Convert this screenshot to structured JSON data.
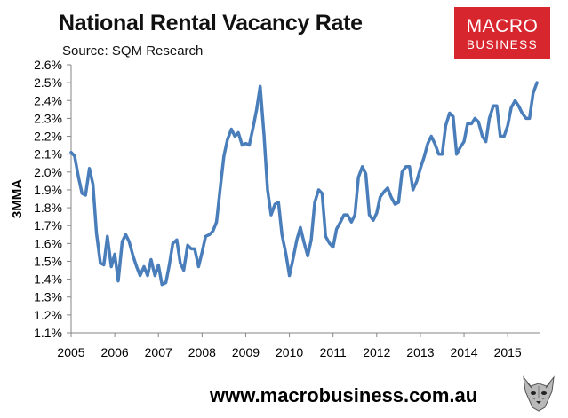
{
  "header": {
    "title": "National Rental Vacancy Rate",
    "subtitle": "Source: SQM Research"
  },
  "logo": {
    "line1": "MACRO",
    "line2": "BUSINESS",
    "color": "#d8262f"
  },
  "footer": {
    "url": "www.macrobusiness.com.au"
  },
  "chart_data": {
    "type": "line",
    "title": "National Rental Vacancy Rate",
    "ylabel": "3MMA",
    "xlabel": "",
    "ylim": [
      1.1,
      2.6
    ],
    "xlim": [
      2005.0,
      2015.75
    ],
    "yticks": [
      "1.1%",
      "1.2%",
      "1.3%",
      "1.4%",
      "1.5%",
      "1.6%",
      "1.7%",
      "1.8%",
      "1.9%",
      "2.0%",
      "2.1%",
      "2.2%",
      "2.3%",
      "2.4%",
      "2.5%",
      "2.6%"
    ],
    "xticks": [
      "2005",
      "2006",
      "2007",
      "2008",
      "2009",
      "2010",
      "2011",
      "2012",
      "2013",
      "2014",
      "2015"
    ],
    "grid": false,
    "line_color": "#4a7ebb",
    "series": [
      {
        "x": [
          2005.0,
          2005.08,
          2005.17,
          2005.25,
          2005.33,
          2005.42,
          2005.5,
          2005.58,
          2005.67,
          2005.75,
          2005.83,
          2005.92,
          2006.0,
          2006.08,
          2006.17,
          2006.25,
          2006.33,
          2006.42,
          2006.5,
          2006.58,
          2006.67,
          2006.75,
          2006.83,
          2006.92,
          2007.0,
          2007.08,
          2007.17,
          2007.25,
          2007.33,
          2007.42,
          2007.5,
          2007.58,
          2007.67,
          2007.75,
          2007.83,
          2007.92,
          2008.0,
          2008.08,
          2008.17,
          2008.25,
          2008.33,
          2008.42,
          2008.5,
          2008.58,
          2008.67,
          2008.75,
          2008.83,
          2008.92,
          2009.0,
          2009.08,
          2009.17,
          2009.25,
          2009.33,
          2009.42,
          2009.5,
          2009.58,
          2009.67,
          2009.75,
          2009.83,
          2009.92,
          2010.0,
          2010.08,
          2010.17,
          2010.25,
          2010.33,
          2010.42,
          2010.5,
          2010.58,
          2010.67,
          2010.75,
          2010.83,
          2010.92,
          2011.0,
          2011.08,
          2011.17,
          2011.25,
          2011.33,
          2011.42,
          2011.5,
          2011.58,
          2011.67,
          2011.75,
          2011.83,
          2011.92,
          2012.0,
          2012.08,
          2012.17,
          2012.25,
          2012.33,
          2012.42,
          2012.5,
          2012.58,
          2012.67,
          2012.75,
          2012.83,
          2012.92,
          2013.0,
          2013.08,
          2013.17,
          2013.25,
          2013.33,
          2013.42,
          2013.5,
          2013.58,
          2013.67,
          2013.75,
          2013.83,
          2013.92,
          2014.0,
          2014.08,
          2014.17,
          2014.25,
          2014.33,
          2014.42,
          2014.5,
          2014.58,
          2014.67,
          2014.75,
          2014.83,
          2014.92,
          2015.0,
          2015.08,
          2015.17,
          2015.25,
          2015.33,
          2015.42,
          2015.5,
          2015.58,
          2015.67
        ],
        "values": [
          2.11,
          2.09,
          1.97,
          1.88,
          1.87,
          2.02,
          1.93,
          1.66,
          1.49,
          1.48,
          1.64,
          1.47,
          1.54,
          1.39,
          1.61,
          1.65,
          1.61,
          1.53,
          1.47,
          1.42,
          1.47,
          1.42,
          1.51,
          1.42,
          1.48,
          1.37,
          1.38,
          1.48,
          1.6,
          1.62,
          1.49,
          1.45,
          1.59,
          1.57,
          1.57,
          1.47,
          1.55,
          1.64,
          1.65,
          1.67,
          1.72,
          1.92,
          2.09,
          2.18,
          2.24,
          2.2,
          2.22,
          2.15,
          2.16,
          2.15,
          2.25,
          2.35,
          2.48,
          2.2,
          1.9,
          1.76,
          1.82,
          1.83,
          1.65,
          1.54,
          1.42,
          1.51,
          1.62,
          1.69,
          1.61,
          1.53,
          1.62,
          1.83,
          1.9,
          1.88,
          1.64,
          1.6,
          1.58,
          1.68,
          1.72,
          1.76,
          1.76,
          1.72,
          1.76,
          1.97,
          2.03,
          1.99,
          1.76,
          1.73,
          1.77,
          1.86,
          1.89,
          1.91,
          1.86,
          1.82,
          1.83,
          2.0,
          2.03,
          2.03,
          1.9,
          1.95,
          2.02,
          2.08,
          2.16,
          2.2,
          2.16,
          2.1,
          2.1,
          2.26,
          2.33,
          2.31,
          2.1,
          2.14,
          2.17,
          2.27,
          2.27,
          2.3,
          2.28,
          2.2,
          2.17,
          2.3,
          2.37,
          2.37,
          2.2,
          2.2,
          2.26,
          2.36,
          2.4,
          2.37,
          2.33,
          2.3,
          2.3,
          2.44,
          2.5
        ]
      }
    ]
  }
}
